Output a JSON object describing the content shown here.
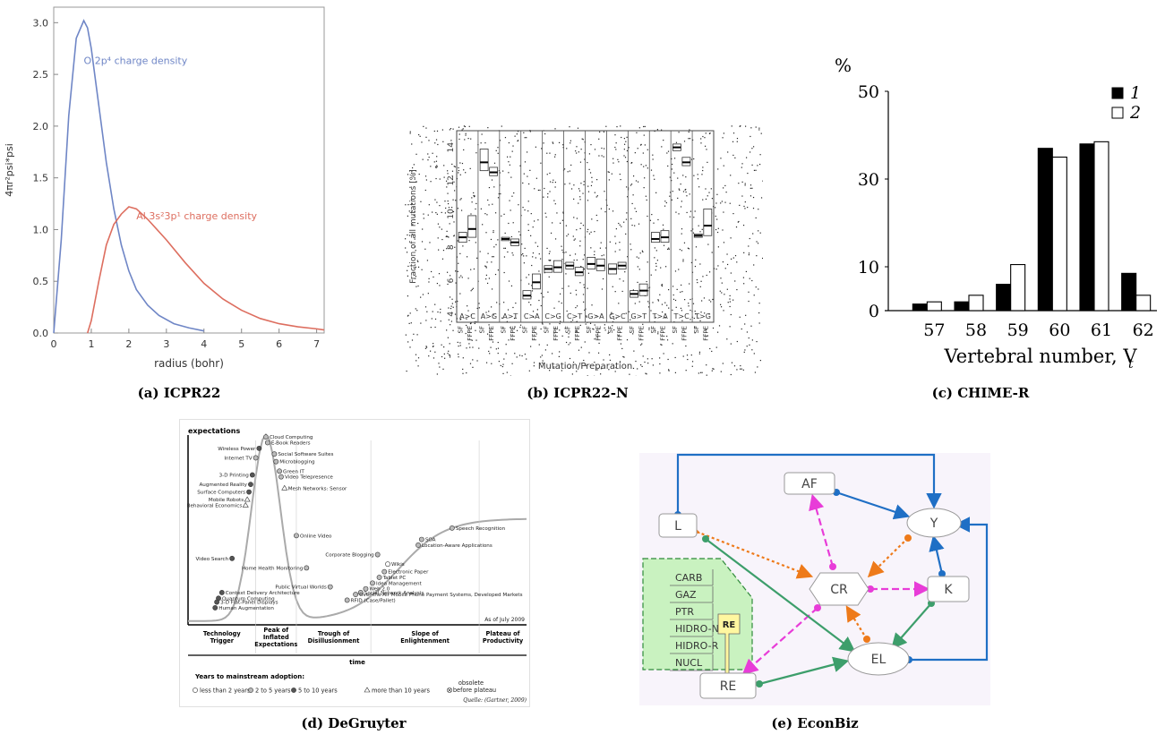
{
  "captions": {
    "a": "(a) ICPR22",
    "b": "(b) ICPR22-N",
    "c": "(c) CHIME-R",
    "d": "(d) DeGruyter",
    "e": "(e) EconBiz"
  },
  "chart_data": [
    {
      "id": "a",
      "type": "line",
      "xlabel": "radius (bohr)",
      "ylabel": "4πr²psi*psi",
      "xlim": [
        0,
        7.2
      ],
      "ylim": [
        0,
        3.15
      ],
      "xticks": [
        "0",
        "1",
        "2",
        "3",
        "4",
        "5",
        "6",
        "7"
      ],
      "yticks": [
        "0.0",
        "0.5",
        "1.0",
        "1.5",
        "2.0",
        "2.5",
        "3.0"
      ],
      "colors": {
        "blue": "#6f86c6",
        "red": "#dd6e5f"
      },
      "series": [
        {
          "name": "O 2p⁴ charge density",
          "color": "#6f86c6",
          "x": [
            0,
            0.2,
            0.4,
            0.6,
            0.8,
            0.9,
            1.0,
            1.2,
            1.4,
            1.6,
            1.8,
            2.0,
            2.2,
            2.5,
            2.8,
            3.2,
            3.6,
            4.0
          ],
          "y": [
            0,
            0.9,
            2.1,
            2.85,
            3.02,
            2.95,
            2.75,
            2.2,
            1.65,
            1.2,
            0.85,
            0.6,
            0.42,
            0.27,
            0.17,
            0.09,
            0.05,
            0.02
          ]
        },
        {
          "name": "Al 3s²3p¹ charge density",
          "color": "#dd6e5f",
          "x": [
            0.9,
            1.0,
            1.2,
            1.4,
            1.6,
            1.8,
            2.0,
            2.2,
            2.5,
            3.0,
            3.5,
            4.0,
            4.5,
            5.0,
            5.5,
            6.0,
            6.5,
            7.0,
            7.2
          ],
          "y": [
            0,
            0.12,
            0.5,
            0.85,
            1.05,
            1.15,
            1.22,
            1.2,
            1.1,
            0.9,
            0.68,
            0.48,
            0.33,
            0.22,
            0.14,
            0.09,
            0.06,
            0.04,
            0.03
          ]
        }
      ],
      "annotations": [
        {
          "text": "O 2p⁴ charge density",
          "x": 0.8,
          "y": 2.6,
          "color": "#6f86c6"
        },
        {
          "text": "Al 3s²3p¹ charge density",
          "x": 2.2,
          "y": 1.1,
          "color": "#dd6e5f"
        }
      ]
    },
    {
      "id": "b",
      "type": "box",
      "xlabel": "Mutation/Preparation",
      "ylabel": "Fraction of all mutations [%]",
      "ylim": [
        3.5,
        15
      ],
      "yticks": [
        "4",
        "6",
        "8",
        "10",
        "12",
        "14"
      ],
      "groups": [
        "A>C",
        "A>G",
        "A>T",
        "C>A",
        "C>G",
        "C>T",
        "G>A",
        "G>C",
        "G>T",
        "T>A",
        "T>C",
        "T>G"
      ],
      "preps": [
        "SF",
        "FFPE"
      ],
      "boxes": [
        {
          "g": "A>C",
          "p": "SF",
          "median": 8.6,
          "q1": 8.3,
          "q3": 8.9
        },
        {
          "g": "A>C",
          "p": "FFPE",
          "median": 9.1,
          "q1": 8.6,
          "q3": 9.9
        },
        {
          "g": "A>G",
          "p": "SF",
          "median": 13.1,
          "q1": 12.6,
          "q3": 13.9
        },
        {
          "g": "A>G",
          "p": "FFPE",
          "median": 12.5,
          "q1": 12.3,
          "q3": 12.8
        },
        {
          "g": "A>T",
          "p": "SF",
          "median": 8.5,
          "q1": 8.4,
          "q3": 8.6
        },
        {
          "g": "A>T",
          "p": "FFPE",
          "median": 8.3,
          "q1": 8.1,
          "q3": 8.5
        },
        {
          "g": "C>A",
          "p": "SF",
          "median": 5.1,
          "q1": 4.9,
          "q3": 5.4
        },
        {
          "g": "C>A",
          "p": "FFPE",
          "median": 5.9,
          "q1": 5.5,
          "q3": 6.4
        },
        {
          "g": "C>G",
          "p": "SF",
          "median": 6.7,
          "q1": 6.5,
          "q3": 6.9
        },
        {
          "g": "C>G",
          "p": "FFPE",
          "median": 6.8,
          "q1": 6.5,
          "q3": 7.2
        },
        {
          "g": "C>T",
          "p": "SF",
          "median": 6.9,
          "q1": 6.7,
          "q3": 7.1
        },
        {
          "g": "C>T",
          "p": "FFPE",
          "median": 6.5,
          "q1": 6.3,
          "q3": 6.8
        },
        {
          "g": "G>A",
          "p": "SF",
          "median": 7.0,
          "q1": 6.7,
          "q3": 7.4
        },
        {
          "g": "G>A",
          "p": "FFPE",
          "median": 6.9,
          "q1": 6.6,
          "q3": 7.3
        },
        {
          "g": "G>C",
          "p": "SF",
          "median": 6.7,
          "q1": 6.4,
          "q3": 7.0
        },
        {
          "g": "G>C",
          "p": "FFPE",
          "median": 6.9,
          "q1": 6.7,
          "q3": 7.1
        },
        {
          "g": "G>T",
          "p": "SF",
          "median": 5.2,
          "q1": 5.0,
          "q3": 5.4
        },
        {
          "g": "G>T",
          "p": "FFPE",
          "median": 5.4,
          "q1": 5.1,
          "q3": 5.8
        },
        {
          "g": "T>A",
          "p": "SF",
          "median": 8.5,
          "q1": 8.3,
          "q3": 8.9
        },
        {
          "g": "T>A",
          "p": "FFPE",
          "median": 8.6,
          "q1": 8.3,
          "q3": 9.0
        },
        {
          "g": "T>C",
          "p": "SF",
          "median": 14.0,
          "q1": 13.8,
          "q3": 14.2
        },
        {
          "g": "T>C",
          "p": "FFPE",
          "median": 13.1,
          "q1": 12.9,
          "q3": 13.4
        },
        {
          "g": "T>G",
          "p": "SF",
          "median": 8.7,
          "q1": 8.6,
          "q3": 8.8
        },
        {
          "g": "T>G",
          "p": "FFPE",
          "median": 9.3,
          "q1": 8.7,
          "q3": 10.3
        }
      ]
    },
    {
      "id": "c",
      "type": "bar",
      "xlabel": "Vertebral number, V",
      "xlabel_sub": "t",
      "ylabel": "%",
      "ylim": [
        0,
        50
      ],
      "yticks": [
        "0",
        "10",
        "30",
        "50"
      ],
      "categories": [
        "57",
        "58",
        "59",
        "60",
        "61",
        "62"
      ],
      "series": [
        {
          "name": "1",
          "values": [
            1.5,
            2,
            6,
            37,
            38,
            8.5
          ],
          "fill": "#000000"
        },
        {
          "name": "2",
          "values": [
            2,
            3.5,
            10.5,
            35,
            38.5,
            3.5
          ],
          "fill": "#ffffff"
        }
      ]
    },
    {
      "id": "d",
      "type": "line",
      "ylabel": "expectations",
      "xlabel": "time",
      "phases": [
        "Technology Trigger",
        "Peak of Inflated Expectations",
        "Trough of Disillusionment",
        "Slope of Enlightenment",
        "Plateau of Productivity"
      ],
      "points": [
        {
          "label": "Cloud Computing",
          "t": 0.23,
          "v": 0.99,
          "k": "b"
        },
        {
          "label": "E-Book Readers",
          "t": 0.235,
          "v": 0.96,
          "k": "b"
        },
        {
          "label": "Wireless Power",
          "t": 0.21,
          "v": 0.93,
          "k": "c"
        },
        {
          "label": "Social Software Suites",
          "t": 0.255,
          "v": 0.9,
          "k": "b"
        },
        {
          "label": "Internet TV",
          "t": 0.2,
          "v": 0.88,
          "k": "b"
        },
        {
          "label": "Microblogging",
          "t": 0.26,
          "v": 0.86,
          "k": "b"
        },
        {
          "label": "Green IT",
          "t": 0.27,
          "v": 0.81,
          "k": "b"
        },
        {
          "label": "3-D Printing",
          "t": 0.19,
          "v": 0.79,
          "k": "c"
        },
        {
          "label": "Video Telepresence",
          "t": 0.275,
          "v": 0.78,
          "k": "b"
        },
        {
          "label": "Augmented Reality",
          "t": 0.185,
          "v": 0.74,
          "k": "c"
        },
        {
          "label": "Mesh Networks: Sensor",
          "t": 0.285,
          "v": 0.72,
          "k": "d"
        },
        {
          "label": "Surface Computers",
          "t": 0.18,
          "v": 0.7,
          "k": "c"
        },
        {
          "label": "Mobile Robots",
          "t": 0.175,
          "v": 0.66,
          "k": "d"
        },
        {
          "label": "Behavioral Economics",
          "t": 0.17,
          "v": 0.63,
          "k": "d"
        },
        {
          "label": "Online Video",
          "t": 0.32,
          "v": 0.47,
          "k": "b"
        },
        {
          "label": "Video Search",
          "t": 0.13,
          "v": 0.35,
          "k": "c"
        },
        {
          "label": "Corporate Blogging",
          "t": 0.56,
          "v": 0.37,
          "k": "b"
        },
        {
          "label": "Home Health Monitoring",
          "t": 0.35,
          "v": 0.3,
          "k": "b"
        },
        {
          "label": "Public Virtual Worlds",
          "t": 0.42,
          "v": 0.2,
          "k": "b"
        },
        {
          "label": "Wikis",
          "t": 0.59,
          "v": 0.32,
          "k": "a"
        },
        {
          "label": "SOA",
          "t": 0.69,
          "v": 0.45,
          "k": "b"
        },
        {
          "label": "Speech Recognition",
          "t": 0.78,
          "v": 0.51,
          "k": "b"
        },
        {
          "label": "Location-Aware Applications",
          "t": 0.68,
          "v": 0.42,
          "k": "b"
        },
        {
          "label": "Electronic Paper",
          "t": 0.58,
          "v": 0.28,
          "k": "b"
        },
        {
          "label": "Tablet PC",
          "t": 0.565,
          "v": 0.25,
          "k": "b"
        },
        {
          "label": "Idea Management",
          "t": 0.545,
          "v": 0.22,
          "k": "b"
        },
        {
          "label": "Web 2.0",
          "t": 0.525,
          "v": 0.19,
          "k": "b"
        },
        {
          "label": "Social Network Analysis",
          "t": 0.51,
          "v": 0.17,
          "k": "b"
        },
        {
          "label": "Over-the-Air Mobile Phone Payment Systems, Developed Markets",
          "t": 0.495,
          "v": 0.16,
          "k": "b"
        },
        {
          "label": "RFID (Case/Pallet)",
          "t": 0.47,
          "v": 0.13,
          "k": "b"
        },
        {
          "label": "Context Delivery Architecture",
          "t": 0.1,
          "v": 0.17,
          "k": "c"
        },
        {
          "label": "Quantum Computing",
          "t": 0.09,
          "v": 0.14,
          "k": "c"
        },
        {
          "label": "3-D Flat-Panel Displays",
          "t": 0.085,
          "v": 0.12,
          "k": "c"
        },
        {
          "label": "Human Augmentation",
          "t": 0.08,
          "v": 0.09,
          "k": "c"
        }
      ],
      "as_of": "As of July 2009",
      "legend_title": "Years to mainstream adoption:",
      "legend": [
        {
          "k": "a",
          "label": "less than 2 years"
        },
        {
          "k": "b",
          "label": "2 to 5 years"
        },
        {
          "k": "c",
          "label": "5 to 10 years"
        },
        {
          "k": "d",
          "label": "more than 10 years"
        },
        {
          "k": "e",
          "label": "obsolete before plateau"
        }
      ],
      "source": "Quelle: (Gartner, 2009)"
    }
  ],
  "diagram": {
    "nodes": [
      {
        "id": "AF",
        "label": "AF"
      },
      {
        "id": "L",
        "label": "L"
      },
      {
        "id": "Y",
        "label": "Y"
      },
      {
        "id": "CR",
        "label": "CR"
      },
      {
        "id": "K",
        "label": "K"
      },
      {
        "id": "EL",
        "label": "EL"
      },
      {
        "id": "RE",
        "label": "RE"
      }
    ],
    "group_items": [
      "CARB",
      "GAZ",
      "PTR",
      "HIDRO-NR",
      "HIDRO-R",
      "NUCL"
    ],
    "group_badge": "RE",
    "colors": {
      "blue": "#1f6fc5",
      "magenta": "#e83cd8",
      "orange": "#ee7a1a",
      "green": "#3d9e6b",
      "groupFill": "#c9f2c0",
      "badge": "#fff7a0"
    }
  }
}
